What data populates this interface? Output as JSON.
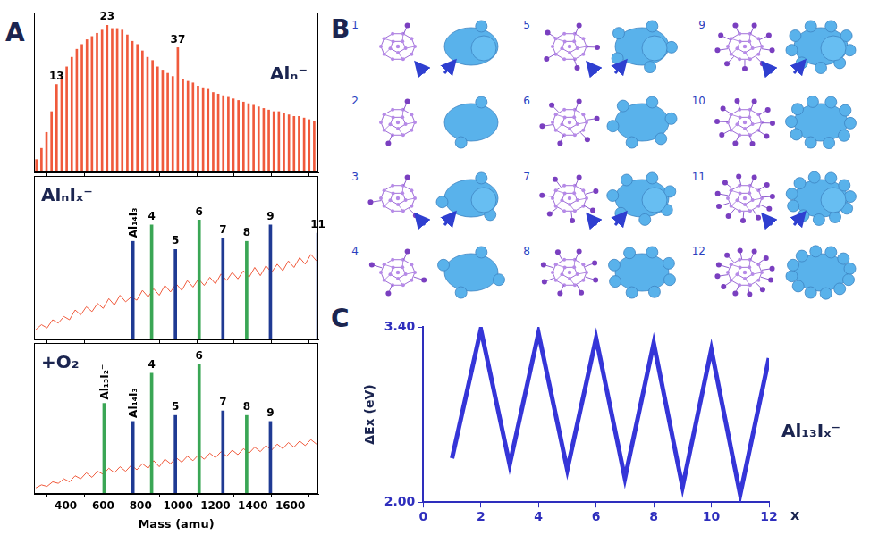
{
  "panel_labels": [
    "A",
    "B",
    "C"
  ],
  "chart_data": [
    {
      "type": "bar",
      "title": "Alₙ⁻",
      "x": [
        243,
        270,
        297,
        324,
        351,
        378,
        405,
        432,
        459,
        486,
        513,
        540,
        567,
        594,
        621,
        648,
        675,
        702,
        729,
        756,
        783,
        810,
        837,
        864,
        891,
        918,
        945,
        972,
        999,
        1026,
        1053,
        1080,
        1107,
        1134,
        1161,
        1188,
        1215,
        1242,
        1269,
        1296,
        1323,
        1350,
        1377,
        1404,
        1431,
        1458,
        1485,
        1512,
        1539,
        1566,
        1593,
        1620,
        1647,
        1674,
        1701,
        1728
      ],
      "values": [
        8,
        15,
        25,
        38,
        55,
        60,
        66,
        72,
        77,
        80,
        83,
        85,
        87,
        89,
        92,
        90,
        90,
        89,
        86,
        82,
        80,
        76,
        72,
        70,
        66,
        64,
        62,
        60,
        78,
        58,
        57,
        56,
        54,
        53,
        52,
        50,
        49,
        48,
        47,
        46,
        45,
        44,
        43,
        42,
        41,
        40,
        39,
        38,
        38,
        37,
        36,
        35,
        35,
        34,
        33,
        32
      ],
      "color": "#f05a3c",
      "annotations": [
        {
          "x": 351,
          "label": "13"
        },
        {
          "x": 621,
          "label": "23"
        },
        {
          "x": 999,
          "label": "37"
        }
      ],
      "xlim": [
        230,
        1750
      ],
      "xticks": [
        400,
        600,
        800,
        1000,
        1200,
        1400,
        1600
      ],
      "ylim": [
        0,
        100
      ],
      "grid": false,
      "tick_labels": false
    },
    {
      "type": "bar",
      "title": "AlₙIₓ⁻",
      "series": [
        {
          "type": "line",
          "color": "#f05a3c",
          "x": [
            240,
            270,
            300,
            330,
            360,
            390,
            420,
            450,
            480,
            510,
            540,
            570,
            600,
            630,
            660,
            690,
            720,
            750,
            780,
            810,
            840,
            870,
            900,
            930,
            960,
            990,
            1020,
            1050,
            1080,
            1110,
            1140,
            1170,
            1200,
            1230,
            1260,
            1290,
            1320,
            1350,
            1380,
            1410,
            1440,
            1470,
            1500,
            1530,
            1560,
            1590,
            1620,
            1650,
            1680,
            1710,
            1740
          ],
          "values": [
            6,
            9,
            7,
            12,
            10,
            14,
            12,
            18,
            15,
            20,
            17,
            22,
            19,
            25,
            21,
            27,
            23,
            26,
            24,
            30,
            26,
            31,
            27,
            33,
            29,
            34,
            30,
            36,
            32,
            37,
            33,
            38,
            34,
            40,
            36,
            41,
            37,
            42,
            38,
            44,
            39,
            45,
            41,
            46,
            42,
            48,
            44,
            50,
            46,
            52,
            48
          ]
        },
        {
          "type": "bar",
          "x": [
            759,
            859,
            986,
            1113,
            1240,
            1367,
            1494,
            1748
          ],
          "values": [
            60,
            70,
            55,
            73,
            62,
            60,
            70,
            65
          ],
          "colors": [
            "#1f3a93",
            "#3aa655",
            "#1f3a93",
            "#3aa655",
            "#1f3a93",
            "#3aa655",
            "#1f3a93",
            "#1f3a93"
          ]
        }
      ],
      "annotations": [
        {
          "x": 759,
          "label": "Al₁₄I₃⁻"
        },
        {
          "x": 859,
          "label": "4"
        },
        {
          "x": 986,
          "label": "5"
        },
        {
          "x": 1113,
          "label": "6"
        },
        {
          "x": 1240,
          "label": "7"
        },
        {
          "x": 1367,
          "label": "8"
        },
        {
          "x": 1494,
          "label": "9"
        },
        {
          "x": 1748,
          "label": "11"
        }
      ],
      "xlim": [
        230,
        1750
      ],
      "xticks": [
        400,
        600,
        800,
        1000,
        1200,
        1400,
        1600
      ],
      "ylim": [
        0,
        100
      ],
      "grid": false,
      "tick_labels": false
    },
    {
      "type": "bar",
      "title": "+O₂",
      "xlabel": "Mass (amu)",
      "series": [
        {
          "type": "line",
          "color": "#f05a3c",
          "x": [
            240,
            270,
            300,
            330,
            360,
            390,
            420,
            450,
            480,
            510,
            540,
            570,
            600,
            630,
            660,
            690,
            720,
            750,
            780,
            810,
            840,
            870,
            900,
            930,
            960,
            990,
            1020,
            1050,
            1080,
            1110,
            1140,
            1170,
            1200,
            1230,
            1260,
            1290,
            1320,
            1350,
            1380,
            1410,
            1440,
            1470,
            1500,
            1530,
            1560,
            1590,
            1620,
            1650,
            1680,
            1710,
            1740
          ],
          "values": [
            4,
            6,
            5,
            8,
            7,
            10,
            8,
            12,
            10,
            14,
            11,
            15,
            13,
            17,
            14,
            18,
            15,
            19,
            16,
            20,
            17,
            22,
            18,
            23,
            20,
            24,
            21,
            25,
            22,
            26,
            23,
            27,
            24,
            28,
            25,
            29,
            26,
            30,
            27,
            31,
            28,
            32,
            29,
            33,
            30,
            34,
            31,
            35,
            32,
            36,
            33
          ]
        },
        {
          "type": "bar",
          "x": [
            605,
            759,
            859,
            986,
            1113,
            1240,
            1367,
            1494
          ],
          "values": [
            60,
            48,
            80,
            52,
            86,
            55,
            52,
            48
          ],
          "colors": [
            "#3aa655",
            "#1f3a93",
            "#3aa655",
            "#1f3a93",
            "#3aa655",
            "#1f3a93",
            "#3aa655",
            "#1f3a93"
          ]
        }
      ],
      "annotations": [
        {
          "x": 605,
          "label": "Al₁₃I₂⁻"
        },
        {
          "x": 759,
          "label": "Al₁₄I₃⁻"
        },
        {
          "x": 859,
          "label": "4"
        },
        {
          "x": 986,
          "label": "5"
        },
        {
          "x": 1113,
          "label": "6"
        },
        {
          "x": 1240,
          "label": "7"
        },
        {
          "x": 1367,
          "label": "8"
        },
        {
          "x": 1494,
          "label": "9"
        }
      ],
      "xlim": [
        230,
        1750
      ],
      "xticks": [
        400,
        600,
        800,
        1000,
        1200,
        1400,
        1600
      ],
      "ylim": [
        0,
        100
      ],
      "grid": false,
      "tick_labels": "x"
    },
    {
      "type": "line",
      "title": "Al₁₃Iₓ⁻",
      "xlabel": "x",
      "ylabel": "ΔEx (eV)",
      "x": [
        1,
        2,
        3,
        4,
        5,
        6,
        7,
        8,
        9,
        10,
        11,
        12
      ],
      "values": [
        2.35,
        3.38,
        2.3,
        3.35,
        2.26,
        3.31,
        2.19,
        3.27,
        2.12,
        3.22,
        2.06,
        3.15
      ],
      "color": "#3535d8",
      "xlim": [
        0,
        12
      ],
      "xticks": [
        0,
        2,
        4,
        6,
        8,
        10,
        12
      ],
      "ylim": [
        2,
        3.4
      ],
      "yticks": [
        {
          "value": 2,
          "label": "2.00"
        },
        {
          "value": 3.4,
          "label": "3.40"
        }
      ],
      "grid": false
    }
  ],
  "structures": {
    "labels": [
      1,
      2,
      3,
      4,
      5,
      6,
      7,
      8,
      9,
      10,
      11,
      12
    ]
  }
}
